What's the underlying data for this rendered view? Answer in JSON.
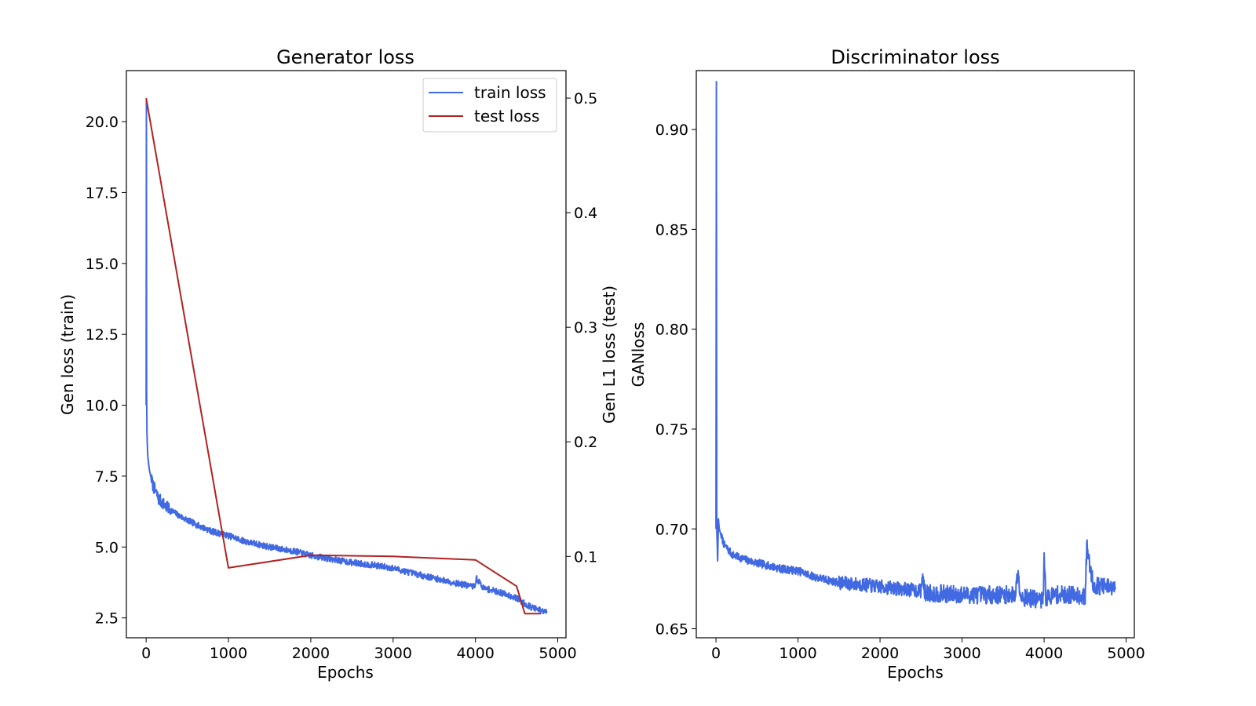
{
  "chart_data": [
    {
      "type": "line",
      "title": "Generator loss",
      "xlabel": "Epochs",
      "ylabel": "Gen loss (train)",
      "y2label": "Gen L1 loss (test)",
      "xlim": [
        -240,
        5100
      ],
      "ylim": [
        1.8,
        21.8
      ],
      "y2lim": [
        0.029,
        0.524
      ],
      "xticks": [
        0,
        1000,
        2000,
        3000,
        4000,
        5000
      ],
      "yticks": [
        2.5,
        5.0,
        7.5,
        10.0,
        12.5,
        15.0,
        17.5,
        20.0
      ],
      "y2ticks": [
        0.1,
        0.2,
        0.3,
        0.4,
        0.5
      ],
      "legend_position": "upper right",
      "series": [
        {
          "name": "train loss",
          "axis": "left",
          "color": "#4169e1",
          "x": [
            0,
            3,
            6,
            10,
            20,
            40,
            80,
            150,
            250,
            400,
            600,
            800,
            1000,
            1200,
            1500,
            1800,
            2000,
            2200,
            2500,
            2800,
            3000,
            3200,
            3500,
            3800,
            3990,
            4010,
            4100,
            4300,
            4500,
            4600,
            4700,
            4800,
            4870
          ],
          "y": [
            10.0,
            20.8,
            10.5,
            9.0,
            8.2,
            7.7,
            7.2,
            6.7,
            6.4,
            6.1,
            5.8,
            5.55,
            5.4,
            5.2,
            5.0,
            4.85,
            4.7,
            4.6,
            4.45,
            4.35,
            4.25,
            4.1,
            3.9,
            3.7,
            3.6,
            3.9,
            3.55,
            3.4,
            3.2,
            3.0,
            2.85,
            2.75,
            2.7
          ]
        },
        {
          "name": "test loss",
          "axis": "right",
          "color": "#b22222",
          "x": [
            0,
            1000,
            2000,
            3000,
            4000,
            4500,
            4600,
            4800
          ],
          "y": [
            0.5,
            0.09,
            0.101,
            0.1,
            0.097,
            0.074,
            0.05,
            0.05
          ]
        }
      ]
    },
    {
      "type": "line",
      "title": "Discriminator loss",
      "xlabel": "Epochs",
      "ylabel": "GANloss",
      "xlim": [
        -240,
        5100
      ],
      "ylim": [
        0.6455,
        0.9295
      ],
      "xticks": [
        0,
        1000,
        2000,
        3000,
        4000,
        5000
      ],
      "yticks": [
        0.65,
        0.7,
        0.75,
        0.8,
        0.85,
        0.9
      ],
      "series": [
        {
          "name": "",
          "color": "#4169e1",
          "x": [
            0,
            5,
            10,
            20,
            30,
            40,
            60,
            100,
            200,
            400,
            600,
            800,
            1000,
            1200,
            1500,
            1800,
            2000,
            2500,
            2520,
            2540,
            3000,
            3500,
            3650,
            3680,
            3720,
            3990,
            4000,
            4020,
            4100,
            4400,
            4500,
            4520,
            4600,
            4870
          ],
          "y": [
            0.7,
            0.924,
            0.7,
            0.684,
            0.705,
            0.7,
            0.697,
            0.692,
            0.687,
            0.684,
            0.682,
            0.68,
            0.679,
            0.676,
            0.673,
            0.672,
            0.671,
            0.669,
            0.678,
            0.668,
            0.667,
            0.667,
            0.667,
            0.679,
            0.666,
            0.664,
            0.69,
            0.665,
            0.667,
            0.667,
            0.666,
            0.691,
            0.672,
            0.67
          ]
        }
      ]
    }
  ]
}
